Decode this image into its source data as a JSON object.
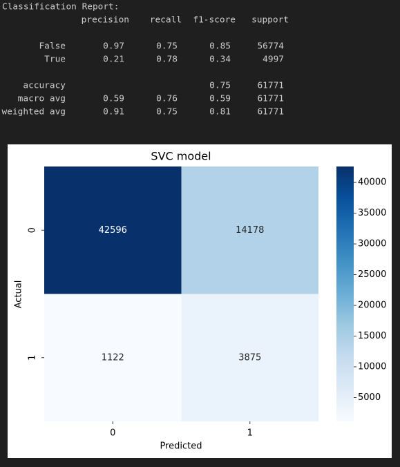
{
  "report": {
    "title": "Classification Report:",
    "headers": [
      "precision",
      "recall",
      "f1-score",
      "support"
    ],
    "rows": [
      {
        "label": "False",
        "precision": 0.97,
        "recall": 0.75,
        "f1-score": 0.85,
        "support": 56774
      },
      {
        "label": "True",
        "precision": 0.21,
        "recall": 0.78,
        "f1-score": 0.34,
        "support": 4997
      },
      {
        "label": "accuracy",
        "f1-score": 0.75,
        "support": 61771
      },
      {
        "label": "macro avg",
        "precision": 0.59,
        "recall": 0.76,
        "f1-score": 0.59,
        "support": 61771
      },
      {
        "label": "weighted avg",
        "precision": 0.91,
        "recall": 0.75,
        "f1-score": 0.81,
        "support": 61771
      }
    ]
  },
  "chart_data": {
    "type": "heatmap",
    "title": "SVC model",
    "xlabel": "Predicted",
    "ylabel": "Actual",
    "x_categories": [
      "0",
      "1"
    ],
    "y_categories": [
      "0",
      "1"
    ],
    "values": [
      [
        42596,
        14178
      ],
      [
        1122,
        3875
      ]
    ],
    "colormap": "Blues",
    "zlim": [
      1122,
      42596
    ],
    "cbar_ticks": [
      5000,
      10000,
      15000,
      20000,
      25000,
      30000,
      35000,
      40000
    ]
  }
}
